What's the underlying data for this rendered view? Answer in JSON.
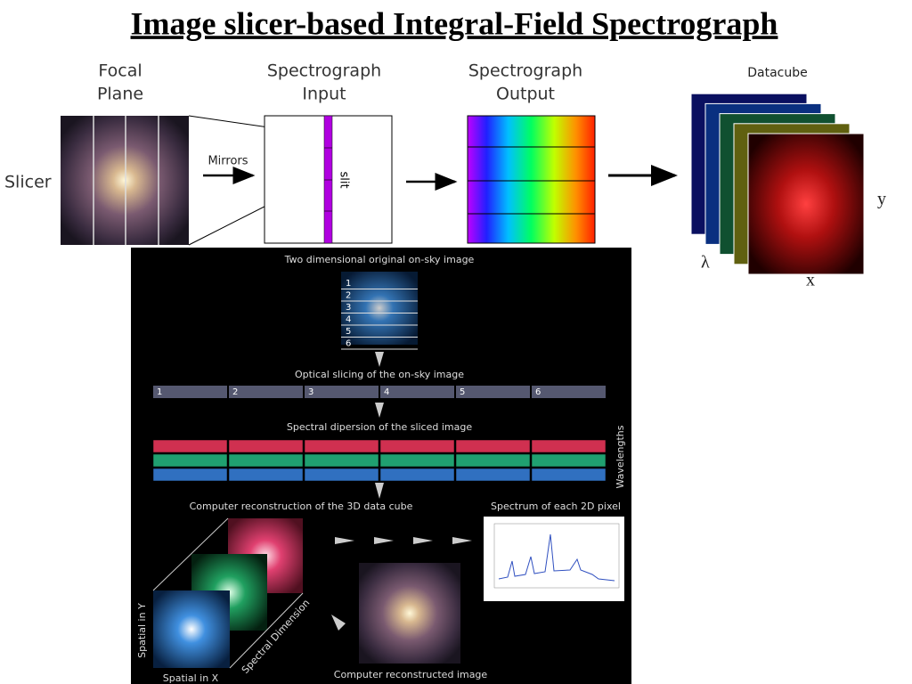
{
  "header": {
    "title": "Image slicer-based Integral-Field Spectrograph"
  },
  "top_diagram": {
    "slicer_label": "Slicer",
    "focal_plane": [
      "Focal",
      "Plane"
    ],
    "mirrors": "Mirrors",
    "spectrograph_input": [
      "Spectrograph",
      "Input"
    ],
    "slit": "slit",
    "spectrograph_output": [
      "Spectrograph",
      "Output"
    ],
    "datacube": "Datacube",
    "axis_y": "y",
    "axis_lambda": "λ",
    "axis_x": "x"
  },
  "bottom_panel": {
    "original_image": "Two dimensional original on-sky image",
    "slice_numbers": [
      1,
      2,
      3,
      4,
      5,
      6
    ],
    "optical_slicing": "Optical slicing of the on-sky image",
    "spectral_dispersion": "Spectral dipersion of the sliced image",
    "wavelengths": "Wavelengths",
    "reconstruction": "Computer reconstruction of the 3D data cube",
    "spectrum": "Spectrum of each 2D pixel",
    "spatial_y": "Spatial in Y",
    "spatial_x": "Spatial in X",
    "spectral_dimension": "Spectral Dimension",
    "reconstructed_image": "Computer reconstructed image"
  }
}
